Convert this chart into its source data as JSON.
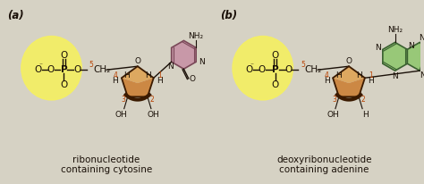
{
  "bg_color": "#d6d2c4",
  "label_a": "(a)",
  "label_b": "(b)",
  "caption_a1": "ribonucleotide",
  "caption_a2": "containing cytosine",
  "caption_b1": "deoxyribonucleotide",
  "caption_b2": "containing adenine",
  "phosphate_circle_color": "#f5f060",
  "phosphate_circle_alpha": 0.9,
  "sugar_color": "#cc8844",
  "sugar_light_color": "#dda860",
  "sugar_edge_color": "#3a1a00",
  "cytosine_color": "#c898a8",
  "cytosine_edge_color": "#7a4858",
  "adenine_color": "#98c878",
  "adenine_edge_color": "#3a6030",
  "text_color": "#1a1008",
  "number_color": "#b84000",
  "bond_color": "#1a1008"
}
